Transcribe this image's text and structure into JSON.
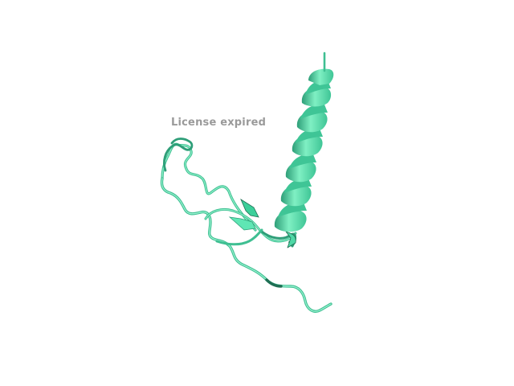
{
  "viewer": {
    "watermark_text": "License expired"
  },
  "structure": {
    "representation": "cartoon",
    "colors": {
      "main": "#5fe6b4",
      "light": "#8ff0c9",
      "dark": "#2e9e78",
      "darkest": "#1f6f54",
      "background": "#ffffff"
    }
  }
}
